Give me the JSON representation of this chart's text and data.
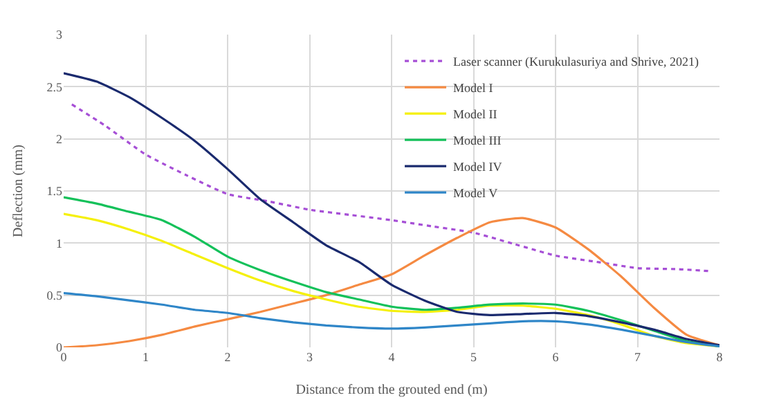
{
  "chart_data": {
    "type": "line",
    "xlabel": "Distance from the grouted end (m)",
    "ylabel": "Deflection (mm)",
    "x": [
      0,
      0.4,
      0.8,
      1.2,
      1.6,
      2.0,
      2.4,
      2.8,
      3.2,
      3.6,
      4.0,
      4.4,
      4.8,
      5.2,
      5.6,
      6.0,
      6.4,
      6.8,
      7.2,
      7.6,
      8.0
    ],
    "xlim": [
      0,
      8
    ],
    "xticks": [
      0,
      1,
      2,
      3,
      4,
      5,
      6,
      7,
      8
    ],
    "ylim": [
      0,
      3
    ],
    "yticks": [
      0,
      0.5,
      1,
      1.5,
      2,
      2.5,
      3
    ],
    "grid": true,
    "legend": "top right",
    "series": [
      {
        "name": "Laser scanner (Kurukulasuriya and Shrive, 2021)",
        "color": "#a64fd6",
        "line_style": "dotted",
        "x": [
          0.1,
          0.5,
          1.0,
          1.5,
          2.0,
          2.5,
          3.0,
          3.5,
          4.0,
          4.5,
          5.0,
          5.5,
          6.0,
          6.5,
          7.0,
          7.5,
          7.9
        ],
        "values": [
          2.33,
          2.13,
          1.85,
          1.65,
          1.47,
          1.4,
          1.32,
          1.27,
          1.22,
          1.16,
          1.1,
          0.99,
          0.88,
          0.82,
          0.76,
          0.75,
          0.73
        ]
      },
      {
        "name": "Model I",
        "color": "#f58a42",
        "values": [
          0,
          0.02,
          0.06,
          0.12,
          0.2,
          0.27,
          0.34,
          0.42,
          0.5,
          0.6,
          0.7,
          0.88,
          1.05,
          1.2,
          1.24,
          1.15,
          0.94,
          0.68,
          0.38,
          0.12,
          0.02
        ]
      },
      {
        "name": "Model II",
        "color": "#f5f00a",
        "values": [
          1.28,
          1.22,
          1.13,
          1.02,
          0.89,
          0.76,
          0.64,
          0.54,
          0.46,
          0.39,
          0.35,
          0.34,
          0.36,
          0.4,
          0.4,
          0.37,
          0.31,
          0.22,
          0.11,
          0.04,
          0.01
        ]
      },
      {
        "name": "Model III",
        "color": "#14c15a",
        "values": [
          1.44,
          1.38,
          1.3,
          1.22,
          1.06,
          0.87,
          0.74,
          0.63,
          0.53,
          0.46,
          0.39,
          0.36,
          0.38,
          0.41,
          0.42,
          0.41,
          0.35,
          0.26,
          0.16,
          0.06,
          0.01
        ]
      },
      {
        "name": "Model IV",
        "color": "#1a2a6e",
        "values": [
          2.63,
          2.55,
          2.4,
          2.2,
          1.98,
          1.71,
          1.42,
          1.2,
          0.98,
          0.82,
          0.6,
          0.45,
          0.34,
          0.31,
          0.32,
          0.33,
          0.3,
          0.24,
          0.17,
          0.08,
          0.02
        ]
      },
      {
        "name": "Model V",
        "color": "#2f86c8",
        "values": [
          0.52,
          0.49,
          0.45,
          0.41,
          0.36,
          0.33,
          0.28,
          0.24,
          0.21,
          0.19,
          0.18,
          0.19,
          0.21,
          0.23,
          0.25,
          0.25,
          0.22,
          0.17,
          0.11,
          0.05,
          0.01
        ]
      }
    ]
  }
}
